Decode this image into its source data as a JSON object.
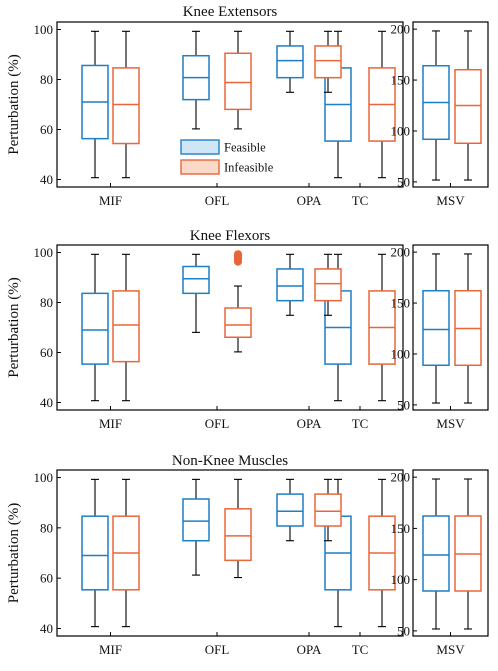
{
  "chart_data": [
    {
      "type": "box",
      "title": "Knee Extensors",
      "ylabel": "Perturbation (%)",
      "main": {
        "ylim": [
          37,
          103
        ],
        "yticks": [
          40,
          60,
          80,
          100
        ],
        "categories": [
          "MIF",
          "OFL",
          "OPA",
          "TC"
        ],
        "series": [
          {
            "name": "Feasible",
            "color": "#1f7fc4",
            "boxes": [
              {
                "category": "MIF",
                "min": 40,
                "q1": 56,
                "median": 71,
                "q3": 86,
                "max": 100
              },
              {
                "category": "OFL",
                "min": 60,
                "q1": 72,
                "median": 81,
                "q3": 90,
                "max": 100
              },
              {
                "category": "OPA",
                "min": 75,
                "q1": 81,
                "median": 88,
                "q3": 94,
                "max": 100
              },
              {
                "category": "TC",
                "min": 40,
                "q1": 55,
                "median": 70,
                "q3": 85,
                "max": 100
              }
            ]
          },
          {
            "name": "Infeasible",
            "color": "#e8663a",
            "boxes": [
              {
                "category": "MIF",
                "min": 40,
                "q1": 54,
                "median": 70,
                "q3": 85,
                "max": 100
              },
              {
                "category": "OFL",
                "min": 60,
                "q1": 68,
                "median": 79,
                "q3": 91,
                "max": 100
              },
              {
                "category": "OPA",
                "min": 75,
                "q1": 81,
                "median": 88,
                "q3": 94,
                "max": 100
              },
              {
                "category": "TC",
                "min": 40,
                "q1": 55,
                "median": 70,
                "q3": 85,
                "max": 100
              }
            ]
          }
        ]
      },
      "side": {
        "ylim": [
          45,
          207
        ],
        "yticks": [
          50,
          100,
          150,
          200
        ],
        "category": "MSV",
        "boxes": [
          {
            "series": "Feasible",
            "min": 50,
            "q1": 91,
            "median": 128,
            "q3": 165,
            "max": 200
          },
          {
            "series": "Infeasible",
            "min": 50,
            "q1": 87,
            "median": 125,
            "q3": 161,
            "max": 200
          }
        ]
      }
    },
    {
      "type": "box",
      "title": "Knee Flexors",
      "ylabel": "Perturbation (%)",
      "main": {
        "ylim": [
          37,
          103
        ],
        "yticks": [
          40,
          60,
          80,
          100
        ],
        "categories": [
          "MIF",
          "OFL",
          "OPA",
          "TC"
        ],
        "series": [
          {
            "name": "Feasible",
            "color": "#1f7fc4",
            "boxes": [
              {
                "category": "MIF",
                "min": 40,
                "q1": 55,
                "median": 69,
                "q3": 84,
                "max": 100
              },
              {
                "category": "OFL",
                "min": 68,
                "q1": 84,
                "median": 90,
                "q3": 95,
                "max": 100
              },
              {
                "category": "OPA",
                "min": 75,
                "q1": 81,
                "median": 87,
                "q3": 94,
                "max": 100
              },
              {
                "category": "TC",
                "min": 40,
                "q1": 55,
                "median": 70,
                "q3": 85,
                "max": 100
              }
            ]
          },
          {
            "name": "Infeasible",
            "color": "#e8663a",
            "boxes": [
              {
                "category": "MIF",
                "min": 40,
                "q1": 56,
                "median": 71,
                "q3": 85,
                "max": 100
              },
              {
                "category": "OFL",
                "min": 60,
                "q1": 66,
                "median": 71,
                "q3": 78,
                "max": 87,
                "outliers": [
                  97,
                  98,
                  99,
                  100
                ]
              },
              {
                "category": "OPA",
                "min": 75,
                "q1": 81,
                "median": 88,
                "q3": 94,
                "max": 100
              },
              {
                "category": "TC",
                "min": 40,
                "q1": 55,
                "median": 70,
                "q3": 85,
                "max": 100
              }
            ]
          }
        ]
      },
      "side": {
        "ylim": [
          45,
          207
        ],
        "yticks": [
          50,
          100,
          150,
          200
        ],
        "category": "MSV",
        "boxes": [
          {
            "series": "Feasible",
            "min": 50,
            "q1": 88,
            "median": 124,
            "q3": 163,
            "max": 200
          },
          {
            "series": "Infeasible",
            "min": 50,
            "q1": 88,
            "median": 125,
            "q3": 163,
            "max": 200
          }
        ]
      }
    },
    {
      "type": "box",
      "title": "Non-Knee Muscles",
      "ylabel": "Perturbation (%)",
      "main": {
        "ylim": [
          37,
          103
        ],
        "yticks": [
          40,
          60,
          80,
          100
        ],
        "categories": [
          "MIF",
          "OFL",
          "OPA",
          "TC"
        ],
        "series": [
          {
            "name": "Feasible",
            "color": "#1f7fc4",
            "boxes": [
              {
                "category": "MIF",
                "min": 40,
                "q1": 55,
                "median": 69,
                "q3": 85,
                "max": 100
              },
              {
                "category": "OFL",
                "min": 61,
                "q1": 75,
                "median": 83,
                "q3": 92,
                "max": 100
              },
              {
                "category": "OPA",
                "min": 75,
                "q1": 81,
                "median": 87,
                "q3": 94,
                "max": 100
              },
              {
                "category": "TC",
                "min": 40,
                "q1": 55,
                "median": 70,
                "q3": 85,
                "max": 100
              }
            ]
          },
          {
            "name": "Infeasible",
            "color": "#e8663a",
            "boxes": [
              {
                "category": "MIF",
                "min": 40,
                "q1": 55,
                "median": 70,
                "q3": 85,
                "max": 100
              },
              {
                "category": "OFL",
                "min": 60,
                "q1": 67,
                "median": 77,
                "q3": 88,
                "max": 100
              },
              {
                "category": "OPA",
                "min": 75,
                "q1": 81,
                "median": 87,
                "q3": 94,
                "max": 100
              },
              {
                "category": "TC",
                "min": 40,
                "q1": 55,
                "median": 70,
                "q3": 85,
                "max": 100
              }
            ]
          }
        ]
      },
      "side": {
        "ylim": [
          45,
          207
        ],
        "yticks": [
          50,
          100,
          150,
          200
        ],
        "category": "MSV",
        "boxes": [
          {
            "series": "Feasible",
            "min": 50,
            "q1": 88,
            "median": 124,
            "q3": 163,
            "max": 200
          },
          {
            "series": "Infeasible",
            "min": 50,
            "q1": 88,
            "median": 125,
            "q3": 163,
            "max": 200
          }
        ]
      }
    }
  ],
  "legend": {
    "items": [
      {
        "label": "Feasible",
        "stroke": "#1f7fc4",
        "fill": "#cfe6f6"
      },
      {
        "label": "Infeasible",
        "stroke": "#e8663a",
        "fill": "#fbd9c9"
      }
    ],
    "placement": "inside first panel, center"
  }
}
